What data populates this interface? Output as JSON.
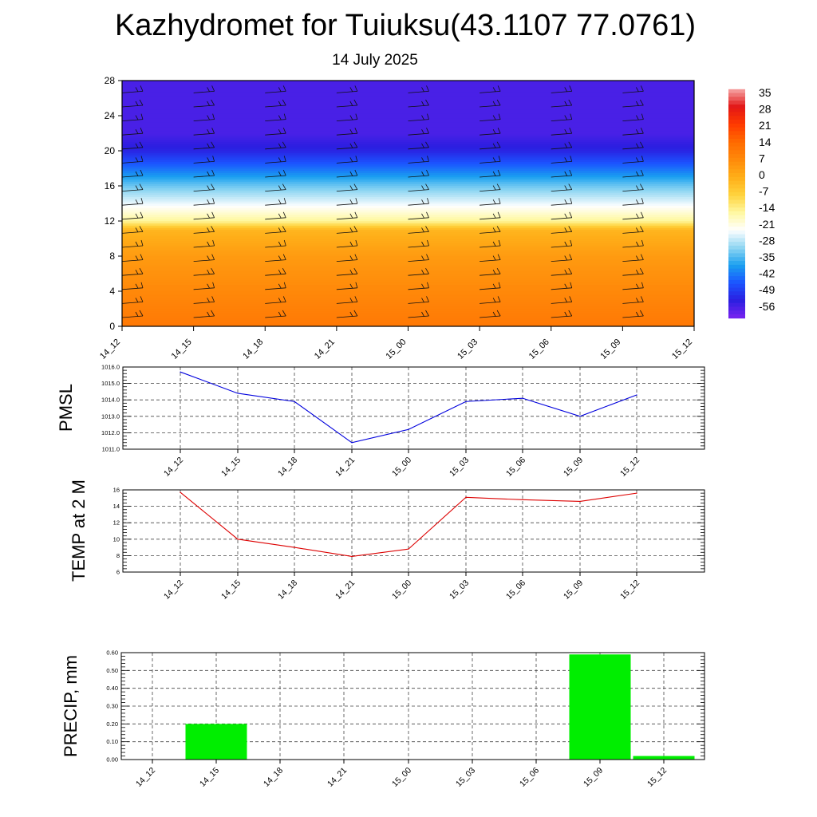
{
  "header": {
    "title": "Kazhydromet for Tuiuksu(43.1107 77.0761)",
    "date": "14 July 2025"
  },
  "chart_data": [
    {
      "type": "heatmap",
      "title": "",
      "xlabel": "",
      "ylabel": "",
      "x_categories": [
        "14_12",
        "14_15",
        "14_18",
        "14_21",
        "15_00",
        "15_03",
        "15_06",
        "15_09",
        "15_12"
      ],
      "y_ticks": [
        "0",
        "4",
        "8",
        "12",
        "16",
        "20",
        "24",
        "28"
      ],
      "ylim": [
        0,
        28
      ],
      "colorbar_labels": [
        "35",
        "28",
        "21",
        "14",
        "7",
        "0",
        "-7",
        "-14",
        "-21",
        "-28",
        "-35",
        "-42",
        "-49",
        "-56"
      ],
      "colorbar_range": [
        -63,
        42
      ],
      "color_stops": [
        "#7a22f0",
        "#2b1fe0",
        "#1b55ff",
        "#1aa0f0",
        "#8fd6f2",
        "#ffffff",
        "#fff8a0",
        "#ffd23c",
        "#ffae18",
        "#ff8a0a",
        "#ff6a00",
        "#ff3a00",
        "#e21616",
        "#f6a6a6"
      ],
      "temperature_profile": [
        {
          "level": 0,
          "value": 14
        },
        {
          "level": 4,
          "value": 10
        },
        {
          "level": 8,
          "value": 6
        },
        {
          "level": 11,
          "value": 0
        },
        {
          "level": 12,
          "value": -14
        },
        {
          "level": 14,
          "value": -24
        },
        {
          "level": 16,
          "value": -33
        },
        {
          "level": 18,
          "value": -44
        },
        {
          "level": 20,
          "value": -54
        },
        {
          "level": 22,
          "value": -58
        },
        {
          "level": 28,
          "value": -58
        }
      ],
      "wind_barb_levels": [
        1,
        2.6,
        4.2,
        5.8,
        7.4,
        9,
        10.6,
        12.2,
        13.8,
        15.4,
        17,
        18.6,
        20.2,
        21.8,
        23.4,
        25,
        26.6
      ],
      "grid": false
    },
    {
      "type": "line",
      "ylabel": "PMSL",
      "x": [
        "14_12",
        "14_15",
        "14_18",
        "14_21",
        "15_00",
        "15_03",
        "15_06",
        "15_09",
        "15_12"
      ],
      "series": [
        {
          "values": [
            1015.7,
            1014.4,
            1013.9,
            1011.4,
            1012.2,
            1013.9,
            1014.1,
            1013.0,
            1014.3
          ],
          "color": "#0000dd"
        }
      ],
      "ylim": [
        1011.0,
        1016.0
      ],
      "y_ticks": [
        "1011.0",
        "1012.0",
        "1013.0",
        "1014.0",
        "1015.0",
        "1016.0"
      ],
      "grid": true
    },
    {
      "type": "line",
      "ylabel": "TEMP at 2 M",
      "x": [
        "14_12",
        "14_15",
        "14_18",
        "14_21",
        "15_00",
        "15_03",
        "15_06",
        "15_09",
        "15_12"
      ],
      "series": [
        {
          "values": [
            15.7,
            10.0,
            9.0,
            7.9,
            8.8,
            15.1,
            14.8,
            14.6,
            15.6
          ],
          "color": "#dd0000"
        }
      ],
      "ylim": [
        6,
        16
      ],
      "y_ticks": [
        "6",
        "8",
        "10",
        "12",
        "14",
        "16"
      ],
      "grid": true
    },
    {
      "type": "bar",
      "ylabel": "PRECIP, mm",
      "categories": [
        "14_12",
        "14_15",
        "14_18",
        "14_21",
        "15_00",
        "15_03",
        "15_06",
        "15_09",
        "15_12"
      ],
      "values": [
        0,
        0.2,
        0,
        0,
        0,
        0,
        0,
        0.59,
        0.02
      ],
      "color": "#00ee00",
      "ylim": [
        0,
        0.6
      ],
      "y_ticks": [
        "0.00",
        "0.10",
        "0.20",
        "0.30",
        "0.40",
        "0.50",
        "0.60"
      ],
      "grid": true
    }
  ]
}
